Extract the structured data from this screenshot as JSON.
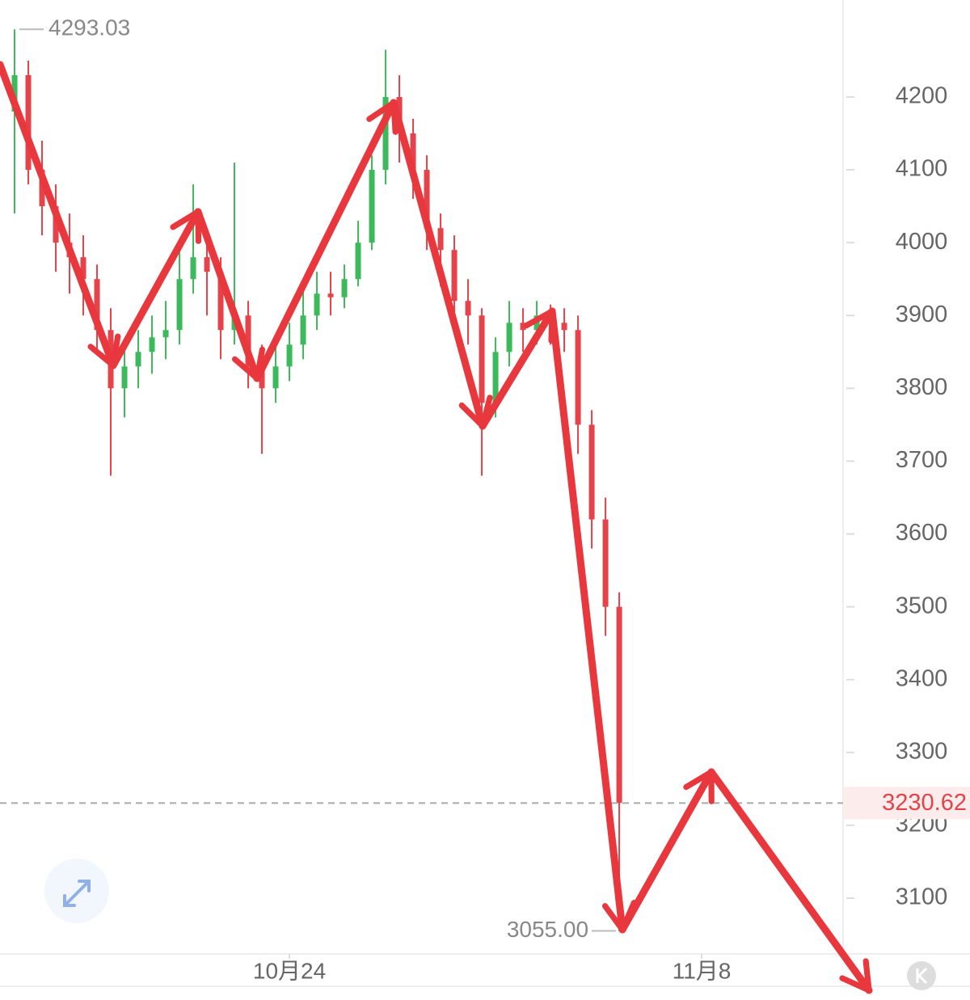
{
  "chart_data": {
    "type": "candlestick",
    "open": [
      4180,
      4230,
      4100,
      4050,
      4000,
      3980,
      3950,
      3880,
      3800,
      3830,
      3850,
      3870,
      3880,
      3950,
      3980,
      3960,
      3880,
      3900,
      3830,
      3800,
      3830,
      3860,
      3900,
      3930,
      3925,
      3950,
      4000,
      4100,
      4200,
      4150,
      4100,
      4020,
      3990,
      3920,
      3900,
      3780,
      3850,
      3890,
      3880,
      3900,
      3890,
      3880,
      3750,
      3620,
      3500
    ],
    "high": [
      4293.03,
      4250,
      4140,
      4080,
      4040,
      4010,
      3970,
      3910,
      3860,
      3880,
      3900,
      3920,
      3990,
      4080,
      4020,
      3980,
      4110,
      3920,
      3860,
      3870,
      3890,
      3940,
      3960,
      3960,
      3970,
      4030,
      4120,
      4265,
      4230,
      4170,
      4120,
      4040,
      4010,
      3950,
      3910,
      3870,
      3920,
      3910,
      3920,
      3915,
      3910,
      3900,
      3770,
      3650,
      3520
    ],
    "low": [
      4040,
      4080,
      4010,
      3960,
      3930,
      3900,
      3850,
      3680,
      3760,
      3800,
      3820,
      3840,
      3860,
      3930,
      3900,
      3840,
      3860,
      3800,
      3710,
      3780,
      3810,
      3840,
      3880,
      3900,
      3910,
      3940,
      3990,
      4080,
      4110,
      4060,
      3990,
      3940,
      3880,
      3860,
      3680,
      3760,
      3830,
      3850,
      3860,
      3860,
      3850,
      3710,
      3580,
      3460,
      3055
    ],
    "close": [
      4230,
      4100,
      4050,
      4000,
      3980,
      3950,
      3880,
      3800,
      3830,
      3850,
      3870,
      3880,
      3950,
      3980,
      3960,
      3880,
      3900,
      3830,
      3800,
      3830,
      3860,
      3900,
      3930,
      3925,
      3950,
      4000,
      4100,
      4200,
      4150,
      4100,
      4020,
      3990,
      3920,
      3900,
      3780,
      3850,
      3890,
      3880,
      3900,
      3890,
      3880,
      3750,
      3620,
      3500,
      3230.62
    ],
    "up_color": "#3cb95a",
    "down_color": "#e5424a",
    "xlim": [
      -1.06,
      60.29
    ],
    "xticks": [
      {
        "value": 20,
        "label": "10月24"
      },
      {
        "value": 50,
        "label": "11月8"
      }
    ],
    "ylim": [
      3023.4,
      4333.2
    ],
    "yticks": [
      3100,
      3200,
      3300,
      3400,
      3500,
      3600,
      3700,
      3800,
      3900,
      4000,
      4100,
      4200
    ],
    "max_label": 4293.03,
    "min_label": {
      "value": 3055,
      "label": "3055.00"
    },
    "last_price": 3230.62
  }
}
